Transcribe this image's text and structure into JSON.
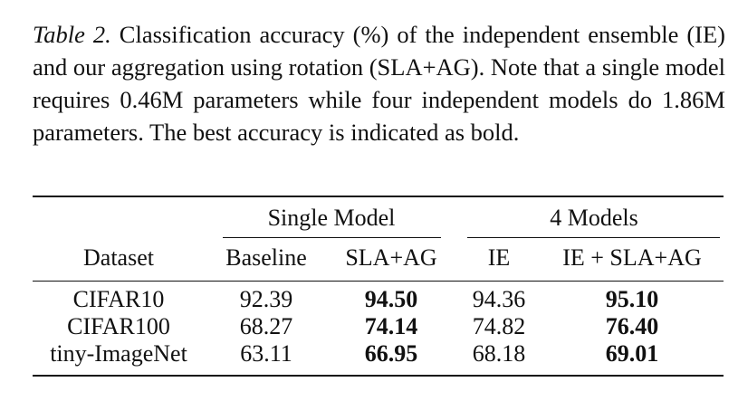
{
  "caption": {
    "label": "Table 2.",
    "text": "Classification accuracy (%) of the independent ensemble (IE) and our aggregation using rotation (SLA+AG). Note that a single model requires 0.46M parameters while four independent models do 1.86M parameters. The best accuracy is indicated as bold."
  },
  "table": {
    "group_headers": [
      "Single Model",
      "4 Models"
    ],
    "columns": [
      "Dataset",
      "Baseline",
      "SLA+AG",
      "IE",
      "IE + SLA+AG"
    ],
    "rows": [
      {
        "dataset": "CIFAR10",
        "baseline": "92.39",
        "sla_ag": "94.50",
        "ie": "94.36",
        "ie_sla_ag": "95.10"
      },
      {
        "dataset": "CIFAR100",
        "baseline": "68.27",
        "sla_ag": "74.14",
        "ie": "74.82",
        "ie_sla_ag": "76.40"
      },
      {
        "dataset": "tiny-ImageNet",
        "baseline": "63.11",
        "sla_ag": "66.95",
        "ie": "68.18",
        "ie_sla_ag": "69.01"
      }
    ]
  }
}
